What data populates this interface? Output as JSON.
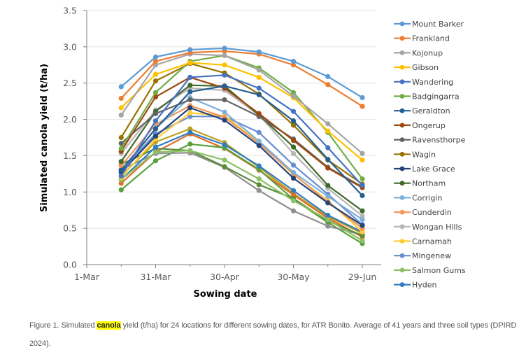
{
  "chart_data": {
    "type": "line",
    "title": "",
    "xlabel": "Sowing date",
    "ylabel": "Simulated canola yield (t/ha)",
    "ylim": [
      0,
      3.5
    ],
    "yticks": [
      "0.0",
      "0.5",
      "1.0",
      "1.5",
      "2.0",
      "2.5",
      "3.0",
      "3.5"
    ],
    "ytick_values": [
      0,
      0.5,
      1.0,
      1.5,
      2.0,
      2.5,
      3.0,
      3.5
    ],
    "xlim_days": [
      0,
      120
    ],
    "xticks": [
      "1-Mar",
      "31-Mar",
      "30-Apr",
      "30-May",
      "29-Jun"
    ],
    "xtick_days": [
      0,
      30,
      60,
      90,
      120
    ],
    "x_days": [
      15,
      30,
      45,
      60,
      75,
      90,
      105,
      120
    ],
    "x": [
      "16-Mar",
      "31-Mar",
      "15-Apr",
      "30-Apr",
      "15-May",
      "30-May",
      "14-Jun",
      "29-Jun"
    ],
    "grid": "horizontal",
    "legend_position": "right",
    "series": [
      {
        "name": "Mount Barker",
        "color": "#5B9BD5",
        "values": [
          2.45,
          2.86,
          2.96,
          2.98,
          2.93,
          2.8,
          2.59,
          2.3
        ]
      },
      {
        "name": "Frankland",
        "color": "#ED7D31",
        "values": [
          2.29,
          2.8,
          2.92,
          2.94,
          2.9,
          2.75,
          2.48,
          2.18
        ]
      },
      {
        "name": "Kojonup",
        "color": "#A5A5A5",
        "values": [
          2.06,
          2.75,
          2.9,
          2.88,
          2.68,
          2.32,
          1.94,
          1.53
        ]
      },
      {
        "name": "Gibson",
        "color": "#FFC000",
        "values": [
          2.16,
          2.62,
          2.78,
          2.75,
          2.58,
          2.3,
          1.84,
          1.44
        ]
      },
      {
        "name": "Wandering",
        "color": "#4472C4",
        "values": [
          1.22,
          1.98,
          2.58,
          2.61,
          2.43,
          2.11,
          1.61,
          1.09
        ]
      },
      {
        "name": "Badgingarra",
        "color": "#70AD47",
        "values": [
          1.6,
          2.37,
          2.8,
          2.88,
          2.71,
          2.37,
          1.82,
          1.18
        ]
      },
      {
        "name": "Geraldton",
        "color": "#255E91",
        "values": [
          1.3,
          1.87,
          2.38,
          2.46,
          2.34,
          1.98,
          1.45,
          0.95
        ]
      },
      {
        "name": "Ongerup",
        "color": "#9E480E",
        "values": [
          1.56,
          2.31,
          2.58,
          2.43,
          2.08,
          1.71,
          1.33,
          1.06
        ]
      },
      {
        "name": "Ravensthorpe",
        "color": "#636363",
        "values": [
          1.67,
          2.08,
          2.27,
          2.27,
          2.04,
          1.73,
          1.34,
          1.07
        ]
      },
      {
        "name": "Wagin",
        "color": "#997300",
        "values": [
          1.75,
          2.53,
          2.77,
          2.64,
          2.35,
          1.92,
          1.44,
          1.11
        ]
      },
      {
        "name": "Lake Grace",
        "color": "#264478",
        "values": [
          1.27,
          1.77,
          2.16,
          1.99,
          1.64,
          1.19,
          0.85,
          0.54
        ]
      },
      {
        "name": "Northam",
        "color": "#43682B",
        "values": [
          1.42,
          2.11,
          2.47,
          2.46,
          2.06,
          1.62,
          1.09,
          0.74
        ]
      },
      {
        "name": "Corrigin",
        "color": "#7CAFDD",
        "values": [
          1.28,
          1.88,
          2.3,
          2.1,
          1.7,
          1.27,
          0.94,
          0.62
        ]
      },
      {
        "name": "Cunderdin",
        "color": "#F1975A",
        "values": [
          1.36,
          1.93,
          2.19,
          2.03,
          1.67,
          1.25,
          0.86,
          0.5
        ]
      },
      {
        "name": "Wongan Hills",
        "color": "#B7B7B7",
        "values": [
          1.53,
          2.13,
          2.43,
          2.4,
          2.06,
          1.53,
          1.05,
          0.67
        ]
      },
      {
        "name": "Carnamah",
        "color": "#FFCD33",
        "values": [
          1.2,
          1.73,
          2.09,
          2.05,
          1.68,
          1.24,
          0.88,
          0.45
        ]
      },
      {
        "name": "Mingenew",
        "color": "#698ED0",
        "values": [
          1.3,
          1.8,
          2.04,
          2.04,
          1.82,
          1.37,
          0.97,
          0.55
        ]
      },
      {
        "name": "Salmon Gums",
        "color": "#8CC168",
        "values": [
          1.17,
          1.55,
          1.57,
          1.44,
          1.18,
          0.88,
          0.62,
          0.33
        ]
      },
      {
        "name": "Hyden",
        "color": "#327DC2",
        "values": [
          1.17,
          1.62,
          1.82,
          1.65,
          1.36,
          1.02,
          0.68,
          0.45
        ]
      }
    ],
    "additional_series_in_background": [
      {
        "color": "#C0A020",
        "values": [
          1.22,
          1.69,
          1.87,
          1.68,
          1.34,
          0.98,
          0.66,
          0.43
        ]
      },
      {
        "color": "#E0702A",
        "values": [
          1.12,
          1.55,
          1.8,
          1.6,
          1.3,
          0.96,
          0.64,
          0.38
        ]
      },
      {
        "color": "#5BA03C",
        "values": [
          1.03,
          1.43,
          1.66,
          1.61,
          1.31,
          0.9,
          0.58,
          0.29
        ]
      },
      {
        "color": "#909090",
        "values": [
          1.31,
          1.53,
          1.54,
          1.34,
          1.02,
          0.74,
          0.53,
          0.41
        ]
      },
      {
        "color": "#5A8C3A",
        "values": [
          1.38,
          1.6,
          1.57,
          1.35,
          1.1,
          0.91,
          0.6,
          0.4
        ]
      }
    ]
  },
  "caption": {
    "before": "Figure 1. Simulated ",
    "highlight": "canola",
    "after": " yield (t/ha) for 24 locations for different sowing dates, for ATR Bonito. Average of 41 years and three soil types (DPIRD 2024)."
  }
}
